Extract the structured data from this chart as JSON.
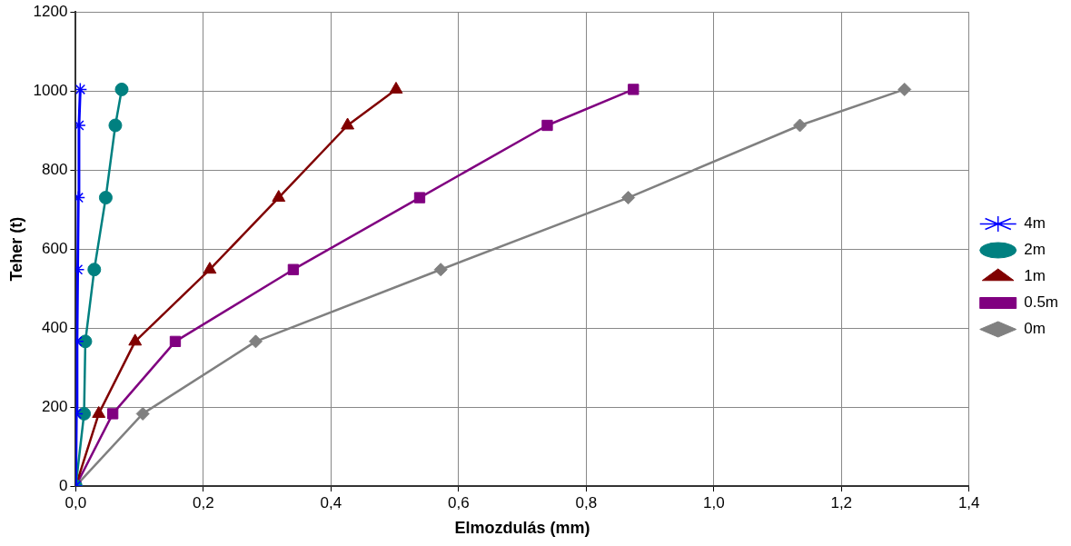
{
  "chart_data": {
    "type": "line",
    "xlabel": "Elmozdulás (mm)",
    "ylabel": "Teher (t)",
    "xlim": [
      0,
      1.4
    ],
    "xticks": [
      {
        "value": 0,
        "label": "0,0"
      },
      {
        "value": 0.2,
        "label": "0,2"
      },
      {
        "value": 0.4,
        "label": "0,4"
      },
      {
        "value": 0.6,
        "label": "0,6"
      },
      {
        "value": 0.8,
        "label": "0,8"
      },
      {
        "value": 1.0,
        "label": "1,0"
      },
      {
        "value": 1.2,
        "label": "1,2"
      },
      {
        "value": 1.4,
        "label": "1,4"
      }
    ],
    "ylim": [
      0,
      1200
    ],
    "yticks": [
      0,
      200,
      400,
      600,
      800,
      1000,
      1200
    ],
    "grid": true,
    "legend": "right",
    "line_style": "solid",
    "series": [
      {
        "name": "4m",
        "color": "#0000ff",
        "marker": "cross",
        "x": [
          0,
          0.001,
          0.002,
          0.003,
          0.004,
          0.005,
          0.007
        ],
        "values": [
          0,
          183,
          366,
          548,
          730,
          913,
          1004
        ]
      },
      {
        "name": "2m",
        "color": "#008080",
        "marker": "circle",
        "x": [
          0,
          0.013,
          0.015,
          0.029,
          0.047,
          0.062,
          0.072
        ],
        "values": [
          0,
          183,
          366,
          548,
          730,
          913,
          1004
        ]
      },
      {
        "name": "1m",
        "color": "#800000",
        "marker": "triangle",
        "x": [
          0,
          0.036,
          0.093,
          0.21,
          0.318,
          0.426,
          0.502
        ],
        "values": [
          0,
          183,
          366,
          548,
          730,
          913,
          1004
        ]
      },
      {
        "name": "0.5m",
        "color": "#800080",
        "marker": "square",
        "x": [
          0,
          0.058,
          0.156,
          0.341,
          0.539,
          0.739,
          0.874
        ],
        "values": [
          0,
          183,
          366,
          548,
          730,
          913,
          1004
        ]
      },
      {
        "name": "0m",
        "color": "#808080",
        "marker": "diamond",
        "x": [
          0,
          0.105,
          0.282,
          0.572,
          0.866,
          1.135,
          1.299
        ],
        "values": [
          0,
          183,
          366,
          548,
          730,
          913,
          1004
        ]
      }
    ]
  }
}
